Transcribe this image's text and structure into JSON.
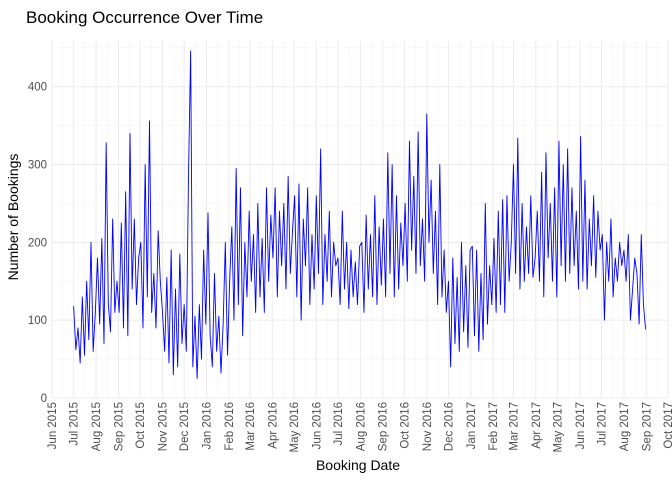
{
  "chart_data": {
    "type": "line",
    "title": "Booking Occurrence Over Time",
    "xlabel": "Booking Date",
    "ylabel": "Number of Bookings",
    "xlim": [
      "2015-06-01",
      "2017-10-01"
    ],
    "ylim": [
      0,
      460
    ],
    "y_ticks": [
      0,
      100,
      200,
      300,
      400
    ],
    "x_ticks": [
      {
        "date": "2015-06-01",
        "label": "Jun 2015"
      },
      {
        "date": "2015-07-01",
        "label": "Jul 2015"
      },
      {
        "date": "2015-08-01",
        "label": "Aug 2015"
      },
      {
        "date": "2015-09-01",
        "label": "Sep 2015"
      },
      {
        "date": "2015-10-01",
        "label": "Oct 2015"
      },
      {
        "date": "2015-11-01",
        "label": "Nov 2015"
      },
      {
        "date": "2015-12-01",
        "label": "Dec 2015"
      },
      {
        "date": "2016-01-01",
        "label": "Jan 2016"
      },
      {
        "date": "2016-02-01",
        "label": "Feb 2016"
      },
      {
        "date": "2016-03-01",
        "label": "Mar 2016"
      },
      {
        "date": "2016-04-01",
        "label": "Apr 2016"
      },
      {
        "date": "2016-05-01",
        "label": "May 2016"
      },
      {
        "date": "2016-06-01",
        "label": "Jun 2016"
      },
      {
        "date": "2016-07-01",
        "label": "Jul 2016"
      },
      {
        "date": "2016-08-01",
        "label": "Aug 2016"
      },
      {
        "date": "2016-09-01",
        "label": "Sep 2016"
      },
      {
        "date": "2016-10-01",
        "label": "Oct 2016"
      },
      {
        "date": "2016-11-01",
        "label": "Nov 2016"
      },
      {
        "date": "2016-12-01",
        "label": "Dec 2016"
      },
      {
        "date": "2017-01-01",
        "label": "Jan 2017"
      },
      {
        "date": "2017-02-01",
        "label": "Feb 2017"
      },
      {
        "date": "2017-03-01",
        "label": "Mar 2017"
      },
      {
        "date": "2017-04-01",
        "label": "Apr 2017"
      },
      {
        "date": "2017-05-01",
        "label": "May 2017"
      },
      {
        "date": "2017-06-01",
        "label": "Jun 2017"
      },
      {
        "date": "2017-07-01",
        "label": "Jul 2017"
      },
      {
        "date": "2017-08-01",
        "label": "Aug 2017"
      },
      {
        "date": "2017-09-01",
        "label": "Sep 2017"
      },
      {
        "date": "2017-10-01",
        "label": "Oct 2017"
      }
    ],
    "grid": true,
    "legend": "none",
    "series": [
      {
        "color": "#0000ff",
        "x": [
          "2015-07-01",
          "2015-07-04",
          "2015-07-07",
          "2015-07-10",
          "2015-07-13",
          "2015-07-16",
          "2015-07-19",
          "2015-07-22",
          "2015-07-25",
          "2015-07-28",
          "2015-07-31",
          "2015-08-03",
          "2015-08-06",
          "2015-08-09",
          "2015-08-12",
          "2015-08-15",
          "2015-08-18",
          "2015-08-21",
          "2015-08-24",
          "2015-08-27",
          "2015-08-30",
          "2015-09-02",
          "2015-09-05",
          "2015-09-08",
          "2015-09-11",
          "2015-09-14",
          "2015-09-17",
          "2015-09-20",
          "2015-09-23",
          "2015-09-26",
          "2015-09-29",
          "2015-10-02",
          "2015-10-05",
          "2015-10-08",
          "2015-10-11",
          "2015-10-14",
          "2015-10-17",
          "2015-10-20",
          "2015-10-23",
          "2015-10-26",
          "2015-10-29",
          "2015-11-01",
          "2015-11-04",
          "2015-11-07",
          "2015-11-10",
          "2015-11-13",
          "2015-11-16",
          "2015-11-19",
          "2015-11-22",
          "2015-11-25",
          "2015-11-28",
          "2015-12-01",
          "2015-12-04",
          "2015-12-07",
          "2015-12-10",
          "2015-12-13",
          "2015-12-16",
          "2015-12-19",
          "2015-12-22",
          "2015-12-25",
          "2015-12-28",
          "2015-12-31",
          "2016-01-03",
          "2016-01-06",
          "2016-01-09",
          "2016-01-12",
          "2016-01-15",
          "2016-01-18",
          "2016-01-21",
          "2016-01-24",
          "2016-01-27",
          "2016-01-30",
          "2016-02-02",
          "2016-02-05",
          "2016-02-08",
          "2016-02-11",
          "2016-02-14",
          "2016-02-17",
          "2016-02-20",
          "2016-02-23",
          "2016-02-26",
          "2016-02-29",
          "2016-03-03",
          "2016-03-06",
          "2016-03-09",
          "2016-03-12",
          "2016-03-15",
          "2016-03-18",
          "2016-03-21",
          "2016-03-24",
          "2016-03-27",
          "2016-03-30",
          "2016-04-02",
          "2016-04-05",
          "2016-04-08",
          "2016-04-11",
          "2016-04-14",
          "2016-04-17",
          "2016-04-20",
          "2016-04-23",
          "2016-04-26",
          "2016-04-29",
          "2016-05-02",
          "2016-05-05",
          "2016-05-08",
          "2016-05-11",
          "2016-05-14",
          "2016-05-17",
          "2016-05-20",
          "2016-05-23",
          "2016-05-26",
          "2016-05-29",
          "2016-06-01",
          "2016-06-04",
          "2016-06-07",
          "2016-06-10",
          "2016-06-13",
          "2016-06-16",
          "2016-06-19",
          "2016-06-22",
          "2016-06-25",
          "2016-06-28",
          "2016-07-01",
          "2016-07-04",
          "2016-07-07",
          "2016-07-10",
          "2016-07-13",
          "2016-07-16",
          "2016-07-19",
          "2016-07-22",
          "2016-07-25",
          "2016-07-28",
          "2016-07-31",
          "2016-08-03",
          "2016-08-06",
          "2016-08-09",
          "2016-08-12",
          "2016-08-15",
          "2016-08-18",
          "2016-08-21",
          "2016-08-24",
          "2016-08-27",
          "2016-08-30",
          "2016-09-02",
          "2016-09-05",
          "2016-09-08",
          "2016-09-11",
          "2016-09-14",
          "2016-09-17",
          "2016-09-20",
          "2016-09-23",
          "2016-09-26",
          "2016-09-29",
          "2016-10-02",
          "2016-10-05",
          "2016-10-08",
          "2016-10-11",
          "2016-10-14",
          "2016-10-17",
          "2016-10-20",
          "2016-10-23",
          "2016-10-26",
          "2016-10-29",
          "2016-11-01",
          "2016-11-04",
          "2016-11-07",
          "2016-11-10",
          "2016-11-13",
          "2016-11-16",
          "2016-11-19",
          "2016-11-22",
          "2016-11-25",
          "2016-11-28",
          "2016-12-01",
          "2016-12-04",
          "2016-12-07",
          "2016-12-10",
          "2016-12-13",
          "2016-12-16",
          "2016-12-19",
          "2016-12-22",
          "2016-12-25",
          "2016-12-28",
          "2016-12-31",
          "2017-01-03",
          "2017-01-06",
          "2017-01-09",
          "2017-01-12",
          "2017-01-15",
          "2017-01-18",
          "2017-01-21",
          "2017-01-24",
          "2017-01-27",
          "2017-01-30",
          "2017-02-02",
          "2017-02-05",
          "2017-02-08",
          "2017-02-11",
          "2017-02-14",
          "2017-02-17",
          "2017-02-20",
          "2017-02-23",
          "2017-02-26",
          "2017-03-01",
          "2017-03-04",
          "2017-03-07",
          "2017-03-10",
          "2017-03-13",
          "2017-03-16",
          "2017-03-19",
          "2017-03-22",
          "2017-03-25",
          "2017-03-28",
          "2017-03-31",
          "2017-04-03",
          "2017-04-06",
          "2017-04-09",
          "2017-04-12",
          "2017-04-15",
          "2017-04-18",
          "2017-04-21",
          "2017-04-24",
          "2017-04-27",
          "2017-04-30",
          "2017-05-03",
          "2017-05-06",
          "2017-05-09",
          "2017-05-12",
          "2017-05-15",
          "2017-05-18",
          "2017-05-21",
          "2017-05-24",
          "2017-05-27",
          "2017-05-30",
          "2017-06-02",
          "2017-06-05",
          "2017-06-08",
          "2017-06-11",
          "2017-06-14",
          "2017-06-17",
          "2017-06-20",
          "2017-06-23",
          "2017-06-26",
          "2017-06-29",
          "2017-07-02",
          "2017-07-05",
          "2017-07-08",
          "2017-07-11",
          "2017-07-14",
          "2017-07-17",
          "2017-07-20",
          "2017-07-23",
          "2017-07-26",
          "2017-07-29",
          "2017-08-01",
          "2017-08-04",
          "2017-08-07",
          "2017-08-10",
          "2017-08-13",
          "2017-08-16",
          "2017-08-19",
          "2017-08-22",
          "2017-08-25",
          "2017-08-28",
          "2017-08-31"
        ],
        "y": [
          118,
          62,
          90,
          45,
          130,
          55,
          150,
          75,
          200,
          60,
          110,
          180,
          95,
          205,
          70,
          328,
          120,
          85,
          230,
          110,
          150,
          110,
          225,
          90,
          265,
          80,
          340,
          140,
          230,
          120,
          180,
          200,
          90,
          300,
          130,
          356,
          110,
          160,
          90,
          215,
          150,
          110,
          60,
          155,
          45,
          190,
          30,
          140,
          40,
          185,
          70,
          120,
          60,
          285,
          446,
          40,
          105,
          25,
          120,
          50,
          190,
          95,
          238,
          80,
          40,
          160,
          60,
          105,
          32,
          95,
          200,
          55,
          150,
          220,
          100,
          295,
          120,
          270,
          80,
          200,
          130,
          240,
          150,
          210,
          110,
          250,
          130,
          205,
          110,
          270,
          150,
          235,
          180,
          270,
          130,
          240,
          170,
          250,
          140,
          285,
          160,
          215,
          260,
          130,
          275,
          100,
          230,
          170,
          270,
          120,
          210,
          140,
          260,
          160,
          320,
          120,
          210,
          150,
          240,
          130,
          200,
          170,
          180,
          120,
          240,
          140,
          200,
          115,
          190,
          130,
          175,
          120,
          195,
          200,
          110,
          235,
          140,
          210,
          130,
          260,
          120,
          220,
          145,
          230,
          130,
          315,
          160,
          300,
          130,
          260,
          140,
          225,
          170,
          250,
          150,
          330,
          190,
          285,
          160,
          342,
          170,
          230,
          150,
          365,
          200,
          280,
          160,
          240,
          120,
          300,
          130,
          190,
          110,
          150,
          40,
          180,
          70,
          155,
          60,
          200,
          85,
          170,
          65,
          190,
          195,
          80,
          190,
          60,
          160,
          75,
          250,
          95,
          170,
          120,
          205,
          110,
          240,
          120,
          255,
          110,
          260,
          150,
          200,
          300,
          160,
          334,
          140,
          250,
          150,
          220,
          160,
          260,
          155,
          180,
          240,
          150,
          290,
          130,
          315,
          180,
          250,
          150,
          270,
          130,
          330,
          170,
          300,
          150,
          320,
          160,
          270,
          170,
          240,
          140,
          336,
          150,
          280,
          140,
          230,
          170,
          260,
          155,
          240,
          190,
          210,
          100,
          200,
          150,
          230,
          130,
          180,
          150,
          200,
          170,
          190,
          150,
          210,
          100,
          140,
          180,
          160,
          95,
          210,
          120,
          88
        ]
      }
    ]
  }
}
